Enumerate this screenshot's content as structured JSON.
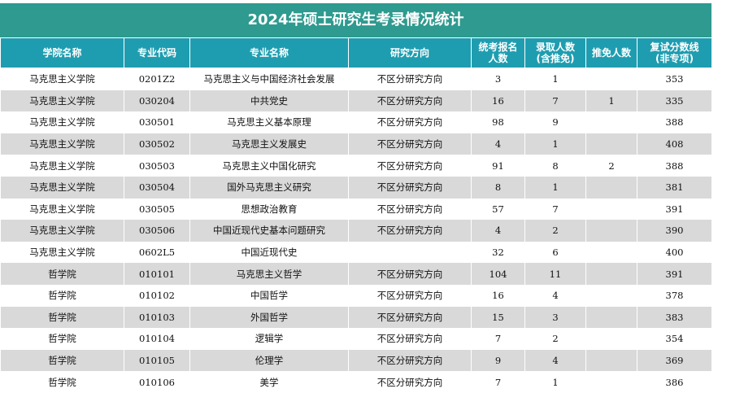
{
  "title": "2024年硕士研究生考录情况统计",
  "header": {
    "college": "学院名称",
    "major_code": "专业代码",
    "major_name": "专业名称",
    "direction": "研究方向",
    "applicants_l1": "统考报名",
    "applicants_l2": "人数",
    "admitted_l1": "录取人数",
    "admitted_l2": "(含推免)",
    "exempt": "推免人数",
    "retest_l1": "复试分数线",
    "retest_l2": "(非专项)"
  },
  "rows": [
    {
      "college": "马克思主义学院",
      "code": "0201Z2",
      "name": "马克思主义与中国经济社会发展",
      "direction": "不区分研究方向",
      "applicants": "3",
      "admitted": "1",
      "exempt": "",
      "score": "353"
    },
    {
      "college": "马克思主义学院",
      "code": "030204",
      "name": "中共党史",
      "direction": "不区分研究方向",
      "applicants": "16",
      "admitted": "7",
      "exempt": "1",
      "score": "335"
    },
    {
      "college": "马克思主义学院",
      "code": "030501",
      "name": "马克思主义基本原理",
      "direction": "不区分研究方向",
      "applicants": "98",
      "admitted": "9",
      "exempt": "",
      "score": "388"
    },
    {
      "college": "马克思主义学院",
      "code": "030502",
      "name": "马克思主义发展史",
      "direction": "不区分研究方向",
      "applicants": "4",
      "admitted": "1",
      "exempt": "",
      "score": "408"
    },
    {
      "college": "马克思主义学院",
      "code": "030503",
      "name": "马克思主义中国化研究",
      "direction": "不区分研究方向",
      "applicants": "91",
      "admitted": "8",
      "exempt": "2",
      "score": "388"
    },
    {
      "college": "马克思主义学院",
      "code": "030504",
      "name": "国外马克思主义研究",
      "direction": "不区分研究方向",
      "applicants": "8",
      "admitted": "1",
      "exempt": "",
      "score": "381"
    },
    {
      "college": "马克思主义学院",
      "code": "030505",
      "name": "思想政治教育",
      "direction": "不区分研究方向",
      "applicants": "57",
      "admitted": "7",
      "exempt": "",
      "score": "391"
    },
    {
      "college": "马克思主义学院",
      "code": "030506",
      "name": "中国近现代史基本问题研究",
      "direction": "不区分研究方向",
      "applicants": "4",
      "admitted": "2",
      "exempt": "",
      "score": "390"
    },
    {
      "college": "马克思主义学院",
      "code": "0602L5",
      "name": "中国近现代史",
      "direction": "",
      "applicants": "32",
      "admitted": "6",
      "exempt": "",
      "score": "400"
    },
    {
      "college": "哲学院",
      "code": "010101",
      "name": "马克思主义哲学",
      "direction": "不区分研究方向",
      "applicants": "104",
      "admitted": "11",
      "exempt": "",
      "score": "391"
    },
    {
      "college": "哲学院",
      "code": "010102",
      "name": "中国哲学",
      "direction": "不区分研究方向",
      "applicants": "16",
      "admitted": "4",
      "exempt": "",
      "score": "378"
    },
    {
      "college": "哲学院",
      "code": "010103",
      "name": "外国哲学",
      "direction": "不区分研究方向",
      "applicants": "15",
      "admitted": "3",
      "exempt": "",
      "score": "383"
    },
    {
      "college": "哲学院",
      "code": "010104",
      "name": "逻辑学",
      "direction": "不区分研究方向",
      "applicants": "7",
      "admitted": "2",
      "exempt": "",
      "score": "354"
    },
    {
      "college": "哲学院",
      "code": "010105",
      "name": "伦理学",
      "direction": "不区分研究方向",
      "applicants": "9",
      "admitted": "4",
      "exempt": "",
      "score": "369"
    },
    {
      "college": "哲学院",
      "code": "010106",
      "name": "美学",
      "direction": "不区分研究方向",
      "applicants": "7",
      "admitted": "1",
      "exempt": "",
      "score": "386"
    }
  ]
}
